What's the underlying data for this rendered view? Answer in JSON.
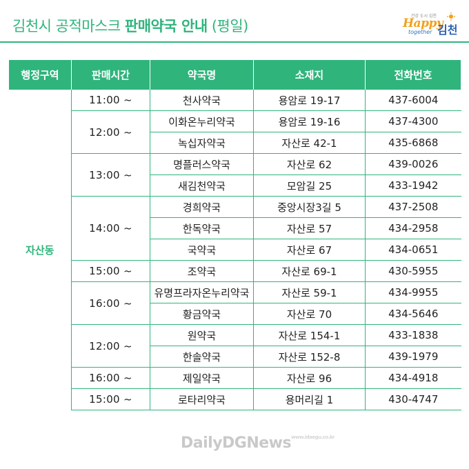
{
  "header": {
    "title_regular": "김천시 공적마스크 ",
    "title_bold": "판매약국 안내",
    "title_suffix": " (평일)"
  },
  "logo": {
    "top_text": "건강 도시 김천",
    "happy": "Happy",
    "together": "together",
    "city": "김천"
  },
  "table": {
    "headers": [
      "행정구역",
      "판매시간",
      "약국명",
      "소재지",
      "전화번호"
    ],
    "district": "자산동",
    "time_groups": [
      {
        "time": "11:00 ~",
        "rows": [
          {
            "name": "천사약국",
            "address": "용암로 19-17",
            "phone": "437-6004"
          }
        ]
      },
      {
        "time": "12:00 ~",
        "rows": [
          {
            "name": "이화온누리약국",
            "address": "용암로 19-16",
            "phone": "437-4300"
          },
          {
            "name": "녹십자약국",
            "address": "자산로 42-1",
            "phone": "435-6868"
          }
        ]
      },
      {
        "time": "13:00 ~",
        "rows": [
          {
            "name": "명플러스약국",
            "address": "자산로 62",
            "phone": "439-0026"
          },
          {
            "name": "새김천약국",
            "address": "모암길 25",
            "phone": "433-1942"
          }
        ]
      },
      {
        "time": "14:00 ~",
        "rows": [
          {
            "name": "경희약국",
            "address": "중앙시장3길 5",
            "phone": "437-2508"
          },
          {
            "name": "한독약국",
            "address": "자산로 57",
            "phone": "434-2958"
          },
          {
            "name": "국약국",
            "address": "자산로 67",
            "phone": "434-0651"
          }
        ]
      },
      {
        "time": "15:00 ~",
        "rows": [
          {
            "name": "조약국",
            "address": "자산로 69-1",
            "phone": "430-5955"
          }
        ]
      },
      {
        "time": "16:00 ~",
        "rows": [
          {
            "name": "유명프라자온누리약국",
            "address": "자산로 59-1",
            "phone": "434-9955"
          },
          {
            "name": "황금약국",
            "address": "자산로 70",
            "phone": "434-5646"
          }
        ]
      },
      {
        "time": "12:00 ~",
        "rows": [
          {
            "name": "원약국",
            "address": "자산로 154-1",
            "phone": "433-1838"
          },
          {
            "name": "한솔약국",
            "address": "자산로 152-8",
            "phone": "439-1979"
          }
        ]
      },
      {
        "time": "16:00 ~",
        "rows": [
          {
            "name": "제일약국",
            "address": "자산로 96",
            "phone": "434-4918"
          }
        ]
      },
      {
        "time": "15:00 ~",
        "rows": [
          {
            "name": "로타리약국",
            "address": "용머리길 1",
            "phone": "430-4747"
          }
        ]
      }
    ]
  },
  "watermark": {
    "text": "DailyDGNews",
    "small": "www.idaegu.co.kr"
  },
  "colors": {
    "accent": "#2fb47c",
    "logo_orange": "#f2a01e",
    "logo_blue": "#2b5fb3"
  }
}
